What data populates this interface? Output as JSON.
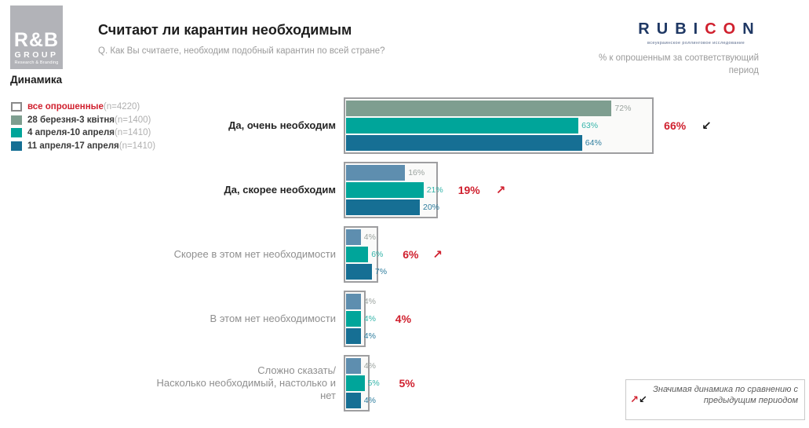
{
  "header": {
    "logo": {
      "line1": "R&B",
      "line2": "GROUP",
      "line3": "Research & Branding"
    },
    "section_label": "Динамика",
    "title": "Считают ли карантин необходимым",
    "subtitle": "Q. Как Вы считаете, необходим подобный карантин по всей стране?",
    "rubicon": {
      "letters": [
        "R",
        "U",
        "B",
        "I",
        "C",
        "O",
        "N"
      ],
      "letter_colors": [
        "#1f3864",
        "#1f3864",
        "#1f3864",
        "#1f3864",
        "#d0202e",
        "#d0202e",
        "#1f3864"
      ],
      "tagline": "всеукраинское роллинговое исследование"
    },
    "right_note": "% к опрошенным за соответствующий период"
  },
  "legend": {
    "items": [
      {
        "label": "все опрошенные",
        "n": "(n=4220)",
        "swatch": "#ffffff",
        "swatch_border": "#8a8a8a",
        "label_style": "red"
      },
      {
        "label": "28 березня-3 квітня",
        "n": " (n=1400)",
        "swatch": "#7e9e90",
        "swatch_border": "#7e9e90",
        "label_style": "dark"
      },
      {
        "label": "4 апреля-10 апреля",
        "n": " (n=1410)",
        "swatch": "#00a59a",
        "swatch_border": "#00a59a",
        "label_style": "dark"
      },
      {
        "label": "11 апреля-17 апреля",
        "n": " (n=1410)",
        "swatch": "#166f94",
        "swatch_border": "#166f94",
        "label_style": "dark"
      }
    ]
  },
  "chart_data": {
    "type": "bar",
    "orientation": "horizontal",
    "unit": "%",
    "series": [
      "28 березня-3 квітня (n=1400)",
      "4 апреля-10 апреля (n=1410)",
      "11 апреля-17 апреля (n=1410)"
    ],
    "overall_series": "все опрошенные (n=4220)",
    "xlim": [
      0,
      80
    ],
    "groups": [
      {
        "label": "Да, очень необходим",
        "emphasized": true,
        "values": [
          72,
          63,
          64
        ],
        "total": 66,
        "bar_colors": [
          "#7e9e90",
          "#00a59a",
          "#166f94"
        ],
        "arrow": {
          "dir": "down",
          "color": "#1a1a1a"
        }
      },
      {
        "label": "Да, скорее необходим",
        "emphasized": true,
        "values": [
          16,
          21,
          20
        ],
        "total": 19,
        "bar_colors": [
          "#5e8eaf",
          "#00a59a",
          "#166f94"
        ],
        "arrow": {
          "dir": "up",
          "color": "#d0202e"
        }
      },
      {
        "label": "Скорее в этом нет необходимости",
        "emphasized": false,
        "values": [
          4,
          6,
          7
        ],
        "total": 6,
        "bar_colors": [
          "#5e8eaf",
          "#00a59a",
          "#166f94"
        ],
        "arrow": {
          "dir": "up",
          "color": "#d0202e"
        }
      },
      {
        "label": "В этом нет необходимости",
        "emphasized": false,
        "values": [
          4,
          4,
          4
        ],
        "total": 4,
        "bar_colors": [
          "#5e8eaf",
          "#00a59a",
          "#166f94"
        ],
        "arrow": null
      },
      {
        "label": "Сложно сказать/ Насколько необходимый, настолько и нет",
        "emphasized": false,
        "label_lines": [
          "Сложно сказать/",
          "Насколько необходимый, настолько и",
          "нет"
        ],
        "values": [
          4,
          5,
          4
        ],
        "total": 5,
        "bar_colors": [
          "#5e8eaf",
          "#00a59a",
          "#166f94"
        ],
        "arrow": null
      }
    ]
  },
  "annotation": {
    "text": "Значимая динамика по сравнению с предыдущим периодом"
  },
  "colors": {
    "accent_red": "#d0202e",
    "sage_green": "#7e9e90",
    "teal": "#00a59a",
    "dark_blue": "#166f94",
    "steel_blue": "#5e8eaf",
    "value_label_colors": [
      "#9ba39f",
      "#35b5aa",
      "#2e7d9e"
    ],
    "frame_border": "#9e9ea0"
  }
}
